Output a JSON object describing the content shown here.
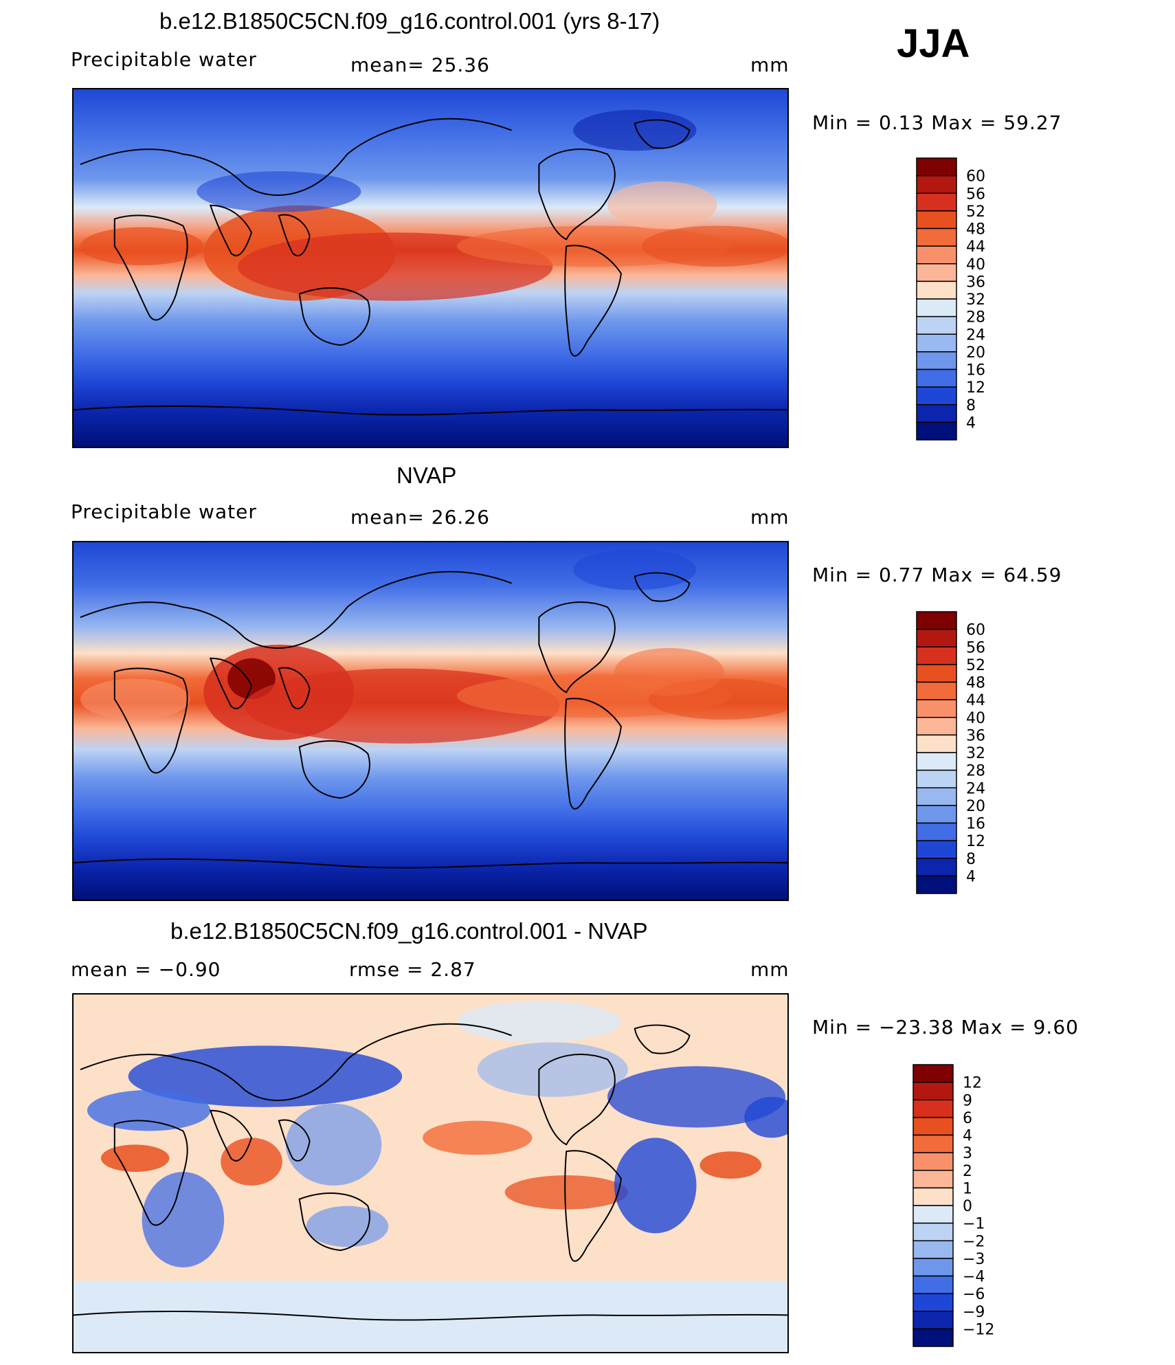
{
  "season": "JJA",
  "panels": [
    {
      "id": "model",
      "title": "b.e12.B1850C5CN.f09_g16.control.001 (yrs 8-17)",
      "left_label": "Precipitable  water",
      "mid_label": "mean=   25.36",
      "units": "mm",
      "minmax": "Min  =     0.13  Max  =    59.27",
      "colorbar": {
        "labels": [
          "60",
          "56",
          "52",
          "48",
          "44",
          "40",
          "36",
          "32",
          "28",
          "24",
          "20",
          "16",
          "12",
          "8",
          "4"
        ],
        "colors": [
          "#7f0000",
          "#b2180f",
          "#d7301f",
          "#e8501f",
          "#f26b3a",
          "#f8916a",
          "#fbb697",
          "#fde0c8",
          "#dceaf8",
          "#bdd3f3",
          "#99b8f0",
          "#6e97ec",
          "#416ee6",
          "#1f47d6",
          "#0b25ad",
          "#00107a"
        ]
      }
    },
    {
      "id": "obs",
      "title": "NVAP",
      "left_label": "Precipitable  water",
      "mid_label": "mean=   26.26",
      "units": "mm",
      "minmax": "Min  =     0.77  Max  =    64.59",
      "colorbar": {
        "labels": [
          "60",
          "56",
          "52",
          "48",
          "44",
          "40",
          "36",
          "32",
          "28",
          "24",
          "20",
          "16",
          "12",
          "8",
          "4"
        ],
        "colors": [
          "#7f0000",
          "#b2180f",
          "#d7301f",
          "#e8501f",
          "#f26b3a",
          "#f8916a",
          "#fbb697",
          "#fde0c8",
          "#dceaf8",
          "#bdd3f3",
          "#99b8f0",
          "#6e97ec",
          "#416ee6",
          "#1f47d6",
          "#0b25ad",
          "#00107a"
        ]
      }
    },
    {
      "id": "diff",
      "title": "b.e12.B1850C5CN.f09_g16.control.001 - NVAP",
      "left_label": "mean  =    −0.90",
      "mid_label": "rmse  =     2.87",
      "units": "mm",
      "minmax": "Min  =  −23.38  Max  =     9.60",
      "colorbar": {
        "labels": [
          "12",
          "9",
          "6",
          "4",
          "3",
          "2",
          "1",
          "0",
          "−1",
          "−2",
          "−3",
          "−4",
          "−6",
          "−9",
          "−12"
        ],
        "colors": [
          "#7f0000",
          "#b2180f",
          "#d7301f",
          "#e8501f",
          "#f26b3a",
          "#f8916a",
          "#fbb697",
          "#fde0c8",
          "#dceaf8",
          "#bdd3f3",
          "#99b8f0",
          "#6e97ec",
          "#416ee6",
          "#1f47d6",
          "#0b25ad",
          "#00107a"
        ]
      }
    }
  ]
}
